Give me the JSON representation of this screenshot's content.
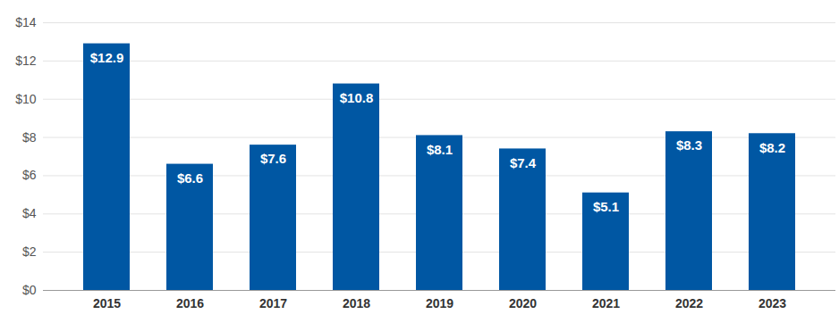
{
  "chart_data": {
    "type": "bar",
    "categories": [
      "2015",
      "2016",
      "2017",
      "2018",
      "2019",
      "2020",
      "2021",
      "2022",
      "2023"
    ],
    "values": [
      12.9,
      6.6,
      7.6,
      10.8,
      8.1,
      7.4,
      5.1,
      8.3,
      8.2
    ],
    "value_labels": [
      "$12.9",
      "$6.6",
      "$7.6",
      "$10.8",
      "$8.1",
      "$7.4",
      "$5.1",
      "$8.3",
      "$8.2"
    ],
    "data_labels": true,
    "color": "#0057a3",
    "ylim": [
      0,
      14
    ],
    "yticks": [
      {
        "value": 0,
        "label": "$0"
      },
      {
        "value": 2,
        "label": "$2"
      },
      {
        "value": 4,
        "label": "$4"
      },
      {
        "value": 6,
        "label": "$6"
      },
      {
        "value": 8,
        "label": "$8"
      },
      {
        "value": 10,
        "label": "$10"
      },
      {
        "value": 12,
        "label": "$12"
      },
      {
        "value": 14,
        "label": "$14"
      }
    ],
    "grid": true
  }
}
